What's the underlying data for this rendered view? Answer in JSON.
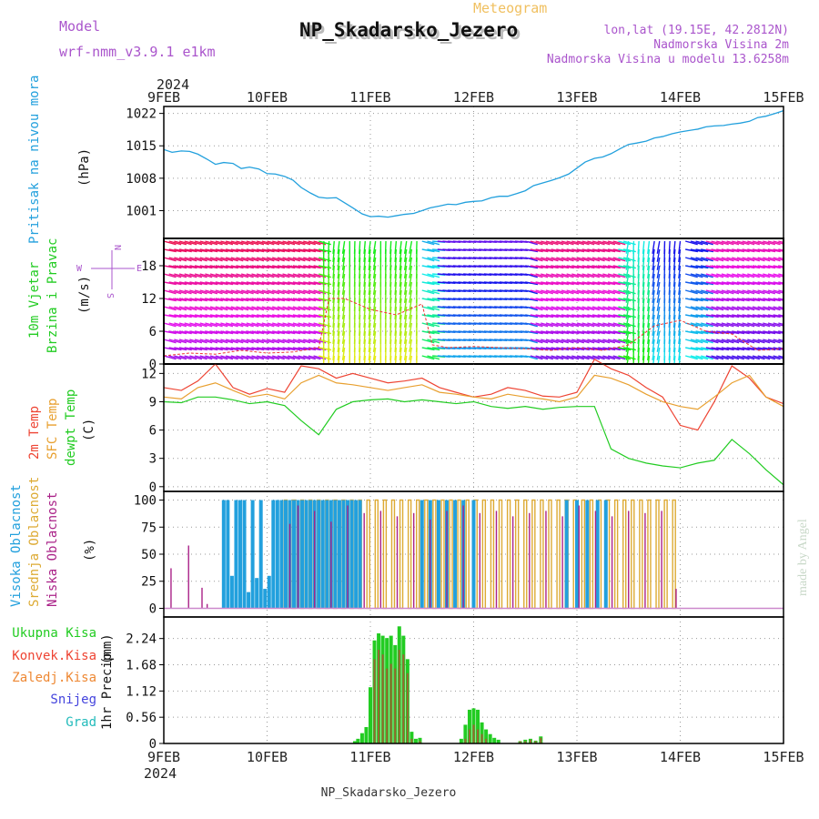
{
  "header": {
    "model_label": "Model",
    "model_name": "wrf-nmm_v3.9.1 e1km",
    "meteogram_label": "Meteogram",
    "station": "NP_Skadarsko_Jezero",
    "lonlat": "lon,lat (19.15E, 42.2812N)",
    "altitude": "Nadmorska Visina 2m",
    "model_altitude": "Nadmorska Visina u modelu 13.6258m",
    "footer_station": "NP_Skadarsko_Jezero",
    "credit": "made by Angel"
  },
  "colors": {
    "pressure": "#22a0dd",
    "temp2m": "#ee4433",
    "sfc": "#e8a030",
    "dewpt": "#22cc22",
    "high_cloud": "#22a0dd",
    "mid_cloud": "#ddaa33",
    "low_cloud": "#aa2288",
    "total_precip": "#22cc22",
    "conv_precip": "#ee4433",
    "frozen": "#ee8833",
    "snow": "#4444dd",
    "grad": "#22bbbb",
    "panel_label_purple": "#aa55cc"
  },
  "chart_data": [
    {
      "type": "line",
      "name": "pressure",
      "axis_label": "Pritisak na nivou mora",
      "unit_label": "(hPa)",
      "x_start": "2024-02-09 00:00",
      "x_end": "2024-02-15 00:00",
      "x_ticks": [
        "9FEB",
        "10FEB",
        "11FEB",
        "12FEB",
        "13FEB",
        "14FEB",
        "15FEB"
      ],
      "year": "2024",
      "ylim": [
        995,
        1023.5
      ],
      "yticks": [
        1001,
        1008,
        1015,
        1022
      ],
      "grid": true,
      "x_days": [
        0,
        0.08,
        0.17,
        0.25,
        0.33,
        0.42,
        0.5,
        0.58,
        0.67,
        0.75,
        0.83,
        0.92,
        1.0,
        1.08,
        1.17,
        1.25,
        1.33,
        1.42,
        1.5,
        1.58,
        1.67,
        1.75,
        1.83,
        1.92,
        2.0,
        2.08,
        2.17,
        2.25,
        2.33,
        2.42,
        2.5,
        2.58,
        2.67,
        2.75,
        2.83,
        2.92,
        3.0,
        3.08,
        3.17,
        3.25,
        3.33,
        3.42,
        3.5,
        3.58,
        3.67,
        3.75,
        3.83,
        3.92,
        4.0,
        4.08,
        4.17,
        4.25,
        4.33,
        4.42,
        4.5,
        4.58,
        4.67,
        4.75,
        4.83,
        4.92,
        5.0,
        5.08,
        5.17,
        5.25,
        5.33,
        5.42,
        5.5,
        5.58,
        5.67,
        5.75,
        5.83,
        5.92,
        6.0
      ],
      "values": [
        1014.2,
        1013.6,
        1013.9,
        1013.8,
        1013.2,
        1012.1,
        1011.0,
        1011.4,
        1011.2,
        1010.1,
        1010.4,
        1010.0,
        1009.0,
        1008.9,
        1008.4,
        1007.6,
        1006.0,
        1004.8,
        1003.9,
        1003.7,
        1003.8,
        1002.7,
        1001.6,
        1000.3,
        999.7,
        999.8,
        999.6,
        999.9,
        1000.2,
        1000.4,
        1001.0,
        1001.6,
        1002.0,
        1002.4,
        1002.3,
        1002.8,
        1003.0,
        1003.1,
        1003.8,
        1004.1,
        1004.1,
        1004.7,
        1005.3,
        1006.4,
        1007.0,
        1007.5,
        1008.1,
        1008.9,
        1010.2,
        1011.5,
        1012.3,
        1012.6,
        1013.3,
        1014.4,
        1015.3,
        1015.6,
        1016.0,
        1016.7,
        1017.0,
        1017.6,
        1018.0,
        1018.3,
        1018.6,
        1019.1,
        1019.3,
        1019.4,
        1019.7,
        1019.9,
        1020.3,
        1021.1,
        1021.4,
        1022.0,
        1022.6
      ]
    },
    {
      "type": "line",
      "name": "wind",
      "axis_label": "10m Vjetar",
      "axis_label2": "Brzina i Pravac",
      "unit_label": "(m/s)",
      "compass": [
        "N",
        "E",
        "S",
        "W"
      ],
      "ylim": [
        0,
        23
      ],
      "yticks": [
        0,
        6,
        12,
        18
      ],
      "x_days": [
        0,
        0.25,
        0.5,
        0.75,
        1.0,
        1.25,
        1.5,
        1.6,
        1.75,
        2.0,
        2.25,
        2.5,
        2.6,
        2.75,
        3.0,
        3.25,
        3.5,
        3.75,
        4.0,
        4.25,
        4.5,
        4.75,
        5.0,
        5.25,
        5.5,
        5.75,
        6.0
      ],
      "values": [
        1.5,
        2.0,
        1.8,
        2.5,
        2.0,
        2.2,
        3.0,
        12,
        12,
        10,
        9,
        11,
        3.5,
        3.0,
        3.2,
        3.0,
        2.8,
        2.5,
        3.0,
        2.5,
        3.5,
        7.0,
        8.0,
        6.0,
        5.5,
        2.5,
        2.8
      ]
    },
    {
      "type": "line",
      "name": "temperature",
      "axis_label": "2m Temp",
      "axis_label2": "SFC Temp",
      "axis_label3": "dewpt Temp",
      "unit_label": "(C)",
      "ylim": [
        -0.5,
        13
      ],
      "yticks": [
        0,
        3,
        6,
        9,
        12
      ],
      "x_days": [
        0,
        0.17,
        0.33,
        0.5,
        0.67,
        0.83,
        1.0,
        1.17,
        1.33,
        1.5,
        1.67,
        1.83,
        2.0,
        2.17,
        2.33,
        2.5,
        2.67,
        2.83,
        3.0,
        3.17,
        3.33,
        3.5,
        3.67,
        3.83,
        4.0,
        4.17,
        4.33,
        4.5,
        4.67,
        4.83,
        5.0,
        5.17,
        5.33,
        5.5,
        5.67,
        5.83,
        6.0
      ],
      "series": [
        {
          "name": "2m Temp",
          "values": [
            10.5,
            10.2,
            11.2,
            13.0,
            10.5,
            9.8,
            10.4,
            10.0,
            12.8,
            12.5,
            11.5,
            12.0,
            11.5,
            11.0,
            11.2,
            11.5,
            10.5,
            10.0,
            9.5,
            9.8,
            10.5,
            10.2,
            9.6,
            9.5,
            10.0,
            13.5,
            12.5,
            11.8,
            10.5,
            9.5,
            6.5,
            6.0,
            9.0,
            12.8,
            11.5,
            9.5,
            8.8
          ]
        },
        {
          "name": "SFC Temp",
          "values": [
            9.5,
            9.3,
            10.5,
            11.0,
            10.2,
            9.5,
            9.8,
            9.3,
            11.0,
            11.8,
            11.0,
            10.8,
            10.5,
            10.2,
            10.5,
            10.8,
            10.0,
            9.8,
            9.5,
            9.3,
            9.8,
            9.5,
            9.3,
            9.0,
            9.5,
            11.8,
            11.5,
            10.8,
            9.8,
            9.0,
            8.5,
            8.2,
            9.5,
            11.0,
            11.8,
            9.5,
            8.5
          ]
        },
        {
          "name": "dewpt Temp",
          "values": [
            9.0,
            8.9,
            9.5,
            9.5,
            9.2,
            8.8,
            9.0,
            8.6,
            7.0,
            5.5,
            8.2,
            9.0,
            9.2,
            9.3,
            9.0,
            9.2,
            9.0,
            8.8,
            9.0,
            8.5,
            8.3,
            8.5,
            8.2,
            8.4,
            8.5,
            8.5,
            4.0,
            3.0,
            2.5,
            2.2,
            2.0,
            2.5,
            2.8,
            5.0,
            3.5,
            1.8,
            0.2
          ]
        }
      ]
    },
    {
      "type": "bar",
      "name": "clouds",
      "axis_label": "Visoka Oblacnost",
      "axis_label2": "Srednja Oblacnost",
      "axis_label3": "Niska Oblacnost",
      "unit_label": "(%)",
      "ylim": [
        0,
        100
      ],
      "yticks": [
        0,
        25,
        50,
        75,
        100
      ],
      "high_bars": [
        [
          0.58,
          100
        ],
        [
          0.62,
          100
        ],
        [
          0.66,
          30
        ],
        [
          0.7,
          100
        ],
        [
          0.74,
          100
        ],
        [
          0.78,
          100
        ],
        [
          0.82,
          15
        ],
        [
          0.86,
          100
        ],
        [
          0.9,
          28
        ],
        [
          0.94,
          100
        ],
        [
          0.98,
          18
        ],
        [
          1.02,
          30
        ],
        [
          1.06,
          100
        ],
        [
          1.1,
          100
        ],
        [
          1.14,
          100
        ],
        [
          1.18,
          100
        ],
        [
          1.22,
          100
        ],
        [
          1.26,
          100
        ],
        [
          1.3,
          100
        ],
        [
          1.34,
          100
        ],
        [
          1.38,
          100
        ],
        [
          1.42,
          100
        ],
        [
          1.46,
          100
        ],
        [
          1.5,
          100
        ],
        [
          1.54,
          100
        ],
        [
          1.58,
          100
        ],
        [
          1.62,
          100
        ],
        [
          1.66,
          100
        ],
        [
          1.7,
          100
        ],
        [
          1.74,
          100
        ],
        [
          1.78,
          100
        ],
        [
          1.82,
          100
        ],
        [
          1.86,
          100
        ],
        [
          1.9,
          100
        ],
        [
          2.5,
          100
        ],
        [
          2.58,
          100
        ],
        [
          2.66,
          100
        ],
        [
          2.74,
          100
        ],
        [
          2.82,
          100
        ],
        [
          2.9,
          100
        ],
        [
          3.0,
          100
        ],
        [
          3.9,
          100
        ],
        [
          4.0,
          100
        ],
        [
          4.1,
          100
        ],
        [
          4.2,
          100
        ],
        [
          4.28,
          100
        ]
      ],
      "mid_bars": [
        [
          1.18,
          100
        ],
        [
          1.26,
          100
        ],
        [
          1.34,
          100
        ],
        [
          1.42,
          100
        ],
        [
          1.5,
          100
        ],
        [
          1.58,
          100
        ],
        [
          1.66,
          100
        ],
        [
          1.74,
          100
        ],
        [
          1.82,
          100
        ],
        [
          1.9,
          100
        ],
        [
          1.98,
          100
        ],
        [
          2.06,
          100
        ],
        [
          2.14,
          100
        ],
        [
          2.22,
          100
        ],
        [
          2.3,
          100
        ],
        [
          2.38,
          100
        ],
        [
          2.46,
          100
        ],
        [
          2.54,
          100
        ],
        [
          2.62,
          100
        ],
        [
          2.7,
          100
        ],
        [
          2.78,
          100
        ],
        [
          2.86,
          100
        ],
        [
          2.94,
          100
        ],
        [
          3.02,
          100
        ],
        [
          3.1,
          100
        ],
        [
          3.18,
          100
        ],
        [
          3.26,
          100
        ],
        [
          3.34,
          100
        ],
        [
          3.42,
          100
        ],
        [
          3.5,
          100
        ],
        [
          3.58,
          100
        ],
        [
          3.66,
          100
        ],
        [
          3.74,
          100
        ],
        [
          3.82,
          100
        ],
        [
          3.9,
          100
        ],
        [
          3.98,
          100
        ],
        [
          4.06,
          100
        ],
        [
          4.14,
          100
        ],
        [
          4.22,
          100
        ],
        [
          4.3,
          100
        ],
        [
          4.38,
          100
        ],
        [
          4.46,
          100
        ],
        [
          4.54,
          100
        ],
        [
          4.62,
          100
        ],
        [
          4.7,
          100
        ],
        [
          4.78,
          100
        ],
        [
          4.86,
          100
        ],
        [
          4.94,
          100
        ]
      ],
      "low_bars": [
        [
          0.07,
          37
        ],
        [
          0.24,
          58
        ],
        [
          0.37,
          19
        ],
        [
          0.42,
          4
        ],
        [
          1.22,
          78
        ],
        [
          1.3,
          95
        ],
        [
          1.46,
          90
        ],
        [
          1.62,
          80
        ],
        [
          1.78,
          95
        ],
        [
          1.94,
          88
        ],
        [
          2.1,
          90
        ],
        [
          2.26,
          85
        ],
        [
          2.42,
          88
        ],
        [
          2.58,
          82
        ],
        [
          2.74,
          90
        ],
        [
          2.9,
          95
        ],
        [
          3.06,
          88
        ],
        [
          3.22,
          90
        ],
        [
          3.38,
          85
        ],
        [
          3.54,
          88
        ],
        [
          3.7,
          90
        ],
        [
          3.86,
          85
        ],
        [
          4.02,
          95
        ],
        [
          4.18,
          90
        ],
        [
          4.34,
          85
        ],
        [
          4.5,
          90
        ],
        [
          4.66,
          88
        ],
        [
          4.82,
          90
        ],
        [
          4.96,
          18
        ]
      ]
    },
    {
      "type": "bar",
      "name": "precipitation",
      "axis_label": "1hr Precip",
      "unit_label": "(mm)",
      "legend": [
        "Ukupna Kisa",
        "Konvek.Kisa",
        "Zaledj.Kisa",
        "Snijeg",
        "Grad"
      ],
      "ylim": [
        0,
        2.7
      ],
      "yticks": [
        0,
        0.56,
        1.12,
        1.68,
        2.24
      ],
      "bars": [
        [
          1.85,
          0.05,
          0
        ],
        [
          1.88,
          0.1,
          0
        ],
        [
          1.92,
          0.22,
          0
        ],
        [
          1.96,
          0.35,
          0
        ],
        [
          2.0,
          1.2,
          0
        ],
        [
          2.04,
          2.2,
          1.8
        ],
        [
          2.08,
          2.35,
          2.0
        ],
        [
          2.12,
          2.3,
          1.9
        ],
        [
          2.16,
          2.25,
          1.6
        ],
        [
          2.2,
          2.3,
          1.7
        ],
        [
          2.24,
          2.1,
          1.6
        ],
        [
          2.28,
          2.5,
          2.0
        ],
        [
          2.32,
          2.3,
          1.9
        ],
        [
          2.36,
          1.8,
          1.5
        ],
        [
          2.4,
          0.25,
          0.1
        ],
        [
          2.44,
          0.1,
          0
        ],
        [
          2.48,
          0.12,
          0.05
        ],
        [
          2.88,
          0.1,
          0
        ],
        [
          2.92,
          0.4,
          0.1
        ],
        [
          2.96,
          0.72,
          0.3
        ],
        [
          3.0,
          0.75,
          0.4
        ],
        [
          3.04,
          0.72,
          0.3
        ],
        [
          3.08,
          0.45,
          0.2
        ],
        [
          3.12,
          0.3,
          0.1
        ],
        [
          3.16,
          0.2,
          0
        ],
        [
          3.2,
          0.12,
          0
        ],
        [
          3.24,
          0.08,
          0
        ],
        [
          3.45,
          0.05,
          0.05
        ],
        [
          3.5,
          0.08,
          0.05
        ],
        [
          3.55,
          0.1,
          0.08
        ],
        [
          3.6,
          0.06,
          0.05
        ],
        [
          3.65,
          0.15,
          0.12
        ]
      ]
    }
  ]
}
